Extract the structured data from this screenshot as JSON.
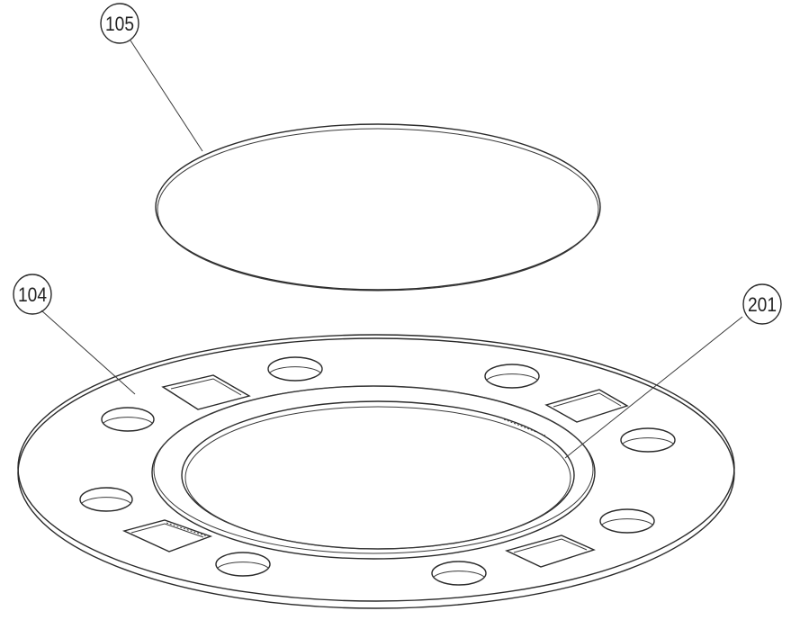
{
  "figure": {
    "callouts": [
      {
        "id": "105",
        "label": "105"
      },
      {
        "id": "104",
        "label": "104"
      },
      {
        "id": "201",
        "label": "201"
      }
    ],
    "colors": {
      "line": "#2a2a2a",
      "background": "#ffffff"
    }
  }
}
